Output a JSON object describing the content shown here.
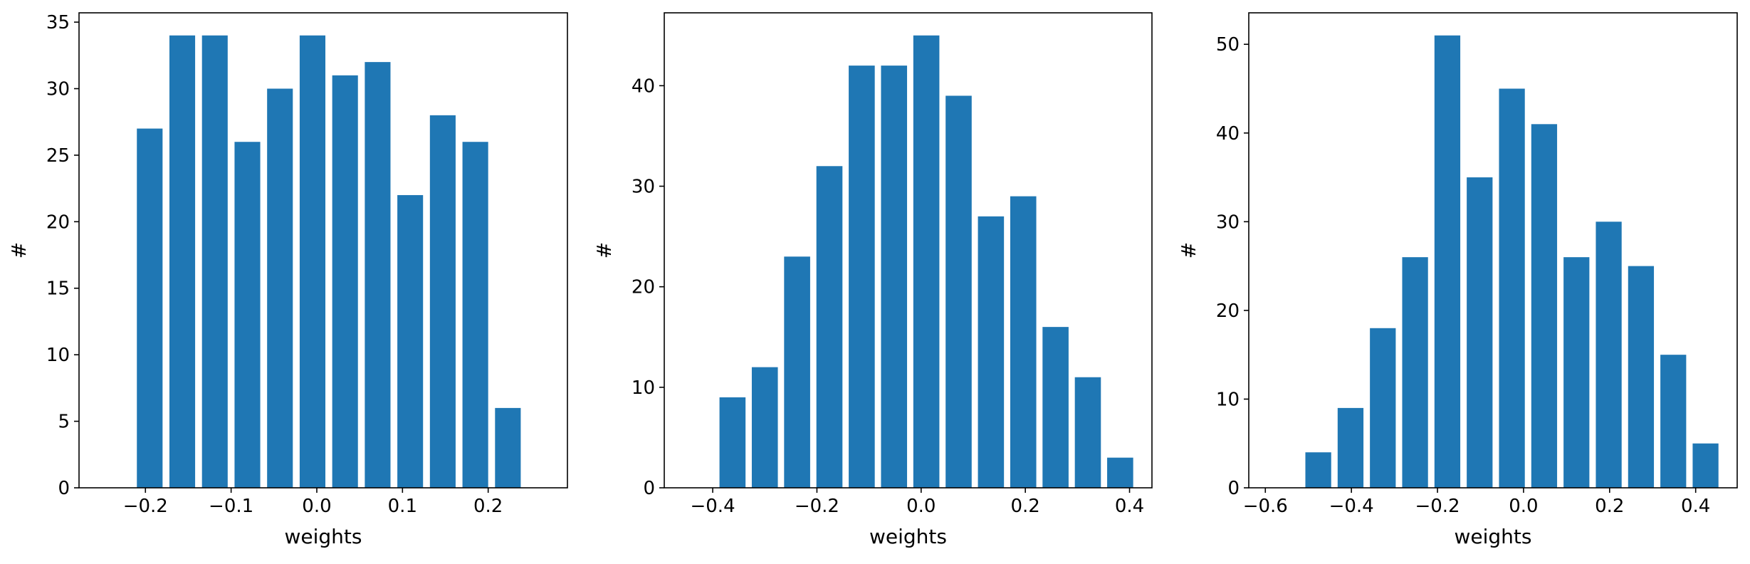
{
  "chart_data": [
    {
      "type": "bar",
      "xlabel": "weights",
      "ylabel": "#",
      "xlim": [
        -0.2775,
        0.2925
      ],
      "ylim": [
        0,
        35.7
      ],
      "xticks": [
        -0.2,
        -0.1,
        0.0,
        0.1,
        0.2
      ],
      "xtick_labels": [
        "−0.2",
        "−0.1",
        "0.0",
        "0.1",
        "0.2"
      ],
      "yticks": [
        0,
        5,
        10,
        15,
        20,
        25,
        30,
        35
      ],
      "ytick_labels": [
        "0",
        "5",
        "10",
        "15",
        "20",
        "25",
        "30",
        "35"
      ],
      "bar_width": 0.03,
      "x": [
        -0.195,
        -0.157,
        -0.119,
        -0.081,
        -0.043,
        -0.005,
        0.033,
        0.071,
        0.109,
        0.147,
        0.185,
        0.223
      ],
      "values": [
        27,
        34,
        34,
        26,
        30,
        34,
        31,
        32,
        22,
        28,
        26,
        6
      ],
      "color": "#1f77b4",
      "grid": false
    },
    {
      "type": "bar",
      "xlabel": "weights",
      "ylabel": "#",
      "xlim": [
        -0.493,
        0.443
      ],
      "ylim": [
        0,
        47.25
      ],
      "xticks": [
        -0.4,
        -0.2,
        0.0,
        0.2,
        0.4
      ],
      "xtick_labels": [
        "−0.4",
        "−0.2",
        "0.0",
        "0.2",
        "0.4"
      ],
      "yticks": [
        0,
        10,
        20,
        30,
        40
      ],
      "ytick_labels": [
        "0",
        "10",
        "20",
        "30",
        "40"
      ],
      "bar_width": 0.05,
      "x": [
        -0.362,
        -0.3,
        -0.238,
        -0.176,
        -0.114,
        -0.052,
        0.01,
        0.072,
        0.134,
        0.196,
        0.258,
        0.32,
        0.382
      ],
      "values": [
        9,
        12,
        23,
        32,
        42,
        42,
        45,
        39,
        27,
        29,
        16,
        11,
        3
      ],
      "color": "#1f77b4",
      "grid": false
    },
    {
      "type": "bar",
      "xlabel": "weights",
      "ylabel": "#",
      "xlim": [
        -0.6385,
        0.4965
      ],
      "ylim": [
        0,
        53.55
      ],
      "xticks": [
        -0.6,
        -0.4,
        -0.2,
        0.0,
        0.2,
        0.4
      ],
      "xtick_labels": [
        "−0.6",
        "−0.4",
        "−0.2",
        "0.0",
        "0.2",
        "0.4"
      ],
      "yticks": [
        0,
        10,
        20,
        30,
        40,
        50
      ],
      "ytick_labels": [
        "0",
        "10",
        "20",
        "30",
        "40",
        "50"
      ],
      "bar_width": 0.06,
      "x": [
        -0.552,
        -0.477,
        -0.402,
        -0.327,
        -0.252,
        -0.177,
        -0.102,
        -0.027,
        0.048,
        0.123,
        0.198,
        0.273,
        0.348,
        0.423
      ],
      "values": [
        0,
        4,
        9,
        18,
        26,
        51,
        35,
        45,
        41,
        26,
        30,
        25,
        15,
        5
      ],
      "color": "#1f77b4",
      "grid": false
    }
  ]
}
